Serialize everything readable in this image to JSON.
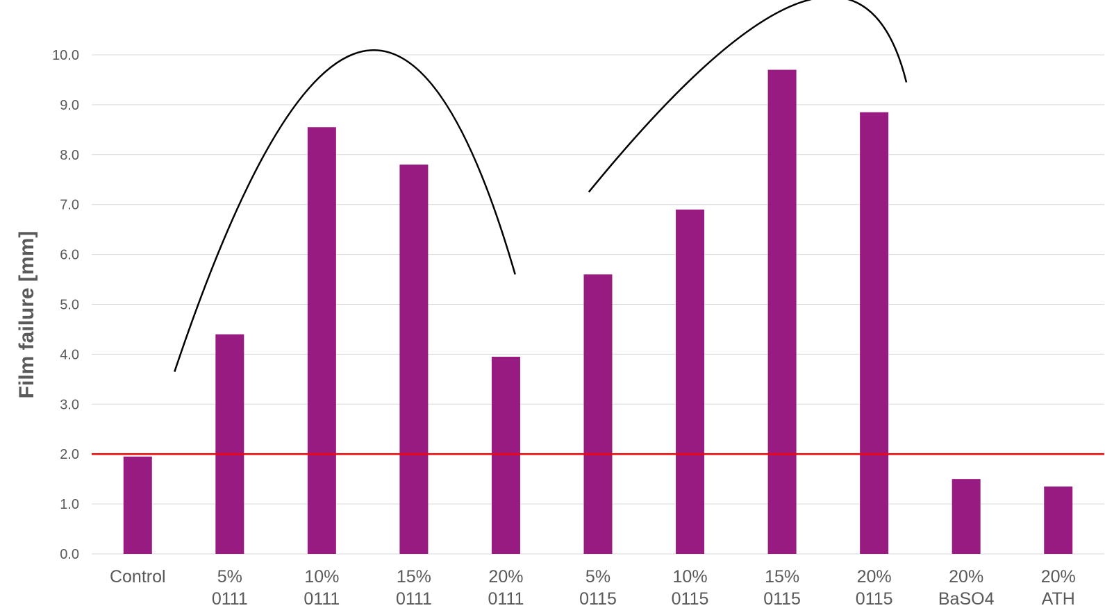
{
  "chart_data": {
    "type": "bar",
    "ylabel": "Film failure [mm]",
    "xlabel": "",
    "ylim": [
      0,
      10
    ],
    "yticks": [
      "0.0",
      "1.0",
      "2.0",
      "3.0",
      "4.0",
      "5.0",
      "6.0",
      "7.0",
      "8.0",
      "9.0",
      "10.0"
    ],
    "grid": true,
    "categories": [
      [
        "Control"
      ],
      [
        "5%",
        "0111"
      ],
      [
        "10%",
        "0111"
      ],
      [
        "15%",
        "0111"
      ],
      [
        "20%",
        "0111"
      ],
      [
        "5%",
        "0115"
      ],
      [
        "10%",
        "0115"
      ],
      [
        "15%",
        "0115"
      ],
      [
        "20%",
        "0115"
      ],
      [
        "20%",
        "BaSO4"
      ],
      [
        "20%",
        "ATH"
      ]
    ],
    "values": [
      1.95,
      4.4,
      8.55,
      7.8,
      3.95,
      5.6,
      6.9,
      9.7,
      8.85,
      1.5,
      1.35
    ],
    "bar_color": "#981B81",
    "reference_line": {
      "y": 2.0,
      "color": "#FF0000"
    },
    "trend_curves": [
      {
        "color": "#000000",
        "points": [
          [
            0.4,
            3.65
          ],
          [
            2.4,
            10.05
          ],
          [
            4.1,
            5.6
          ]
        ]
      },
      {
        "color": "#000000",
        "points": [
          [
            4.9,
            7.25
          ],
          [
            7.2,
            11.05
          ],
          [
            8.35,
            9.45
          ]
        ]
      }
    ]
  }
}
